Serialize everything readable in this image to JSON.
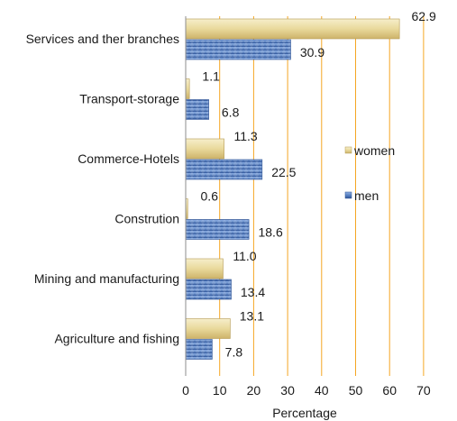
{
  "chart_data": {
    "type": "bar",
    "orientation": "horizontal",
    "categories": [
      "Services and ther branches",
      "Transport-storage",
      "Commerce-Hotels",
      "Constrution",
      "Mining and manufacturing",
      "Agriculture and fishing"
    ],
    "series": [
      {
        "name": "women",
        "values": [
          62.9,
          1.1,
          11.3,
          0.6,
          11.0,
          13.1
        ],
        "labels": [
          "62.9",
          "1.1",
          "11.3",
          "0.6",
          "11.0",
          "13.1"
        ],
        "color": "#e8d9a0"
      },
      {
        "name": "men",
        "values": [
          30.9,
          6.8,
          22.5,
          18.6,
          13.4,
          7.8
        ],
        "labels": [
          "30.9",
          "6.8",
          "22.5",
          "18.6",
          "13.4",
          "7.8"
        ],
        "color": "#5b84c4"
      }
    ],
    "xlabel": "Percentage",
    "ylabel": "",
    "xlim": [
      0,
      70
    ],
    "xticks": [
      "0",
      "10",
      "20",
      "30",
      "40",
      "50",
      "60",
      "70"
    ],
    "grid": true,
    "grid_color": "#f5a623",
    "legend_position": "right"
  }
}
